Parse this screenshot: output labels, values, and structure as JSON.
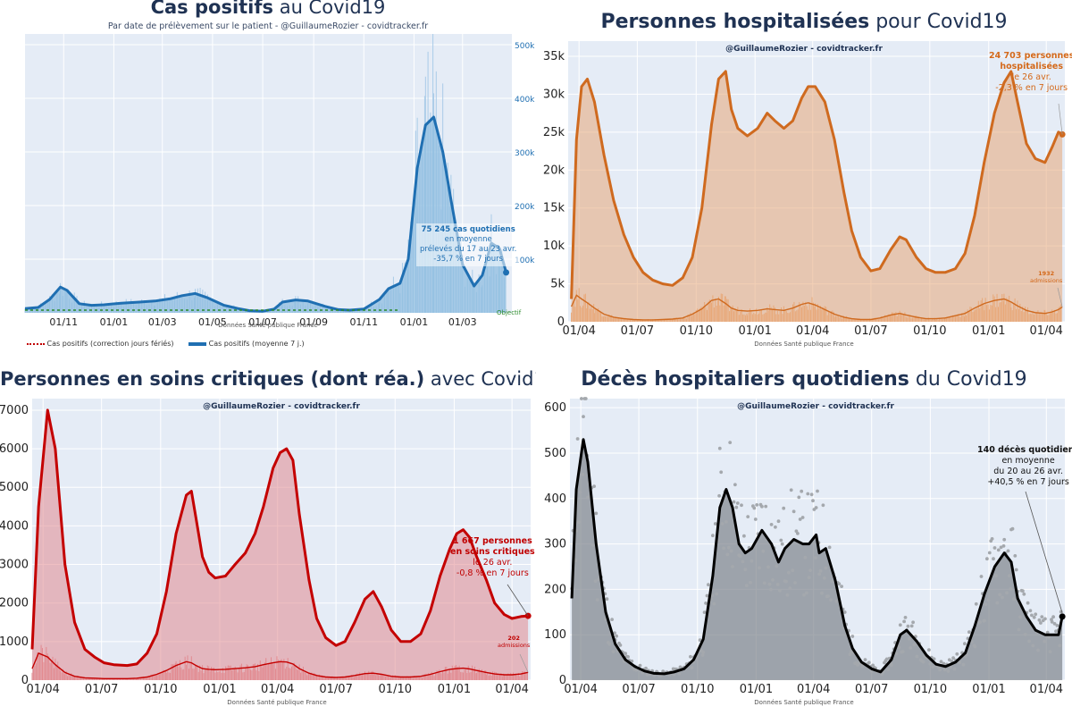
{
  "panels": [
    {
      "id": "cas",
      "title_bold": "Cas positifs",
      "title_rest": " au Covid19",
      "subtitle": "Par date de prélèvement sur le patient - @GuillaumeRozier - covidtracker.fr",
      "source": "Données Santé publique France",
      "legend": [
        {
          "label": "Cas positifs (correction jours fériés)",
          "color": "#c00000"
        },
        {
          "label": "Cas positifs (moyenne 7 j.)",
          "color": "#1f6fb2"
        }
      ],
      "annotation": {
        "bold": "75 245 cas quotidiens",
        "lines": [
          "en moyenne",
          "prélevés du 17 au 23 avr.",
          "-35,7 % en 7 jours"
        ]
      },
      "objective_label": "Objectif",
      "color": "#1f6fb2"
    },
    {
      "id": "hosp",
      "title_bold": "Personnes hospitalisées",
      "title_rest": " pour Covid19",
      "credit": "@GuillaumeRozier - covidtracker.fr",
      "source": "Données Santé publique France",
      "annotation": {
        "bold_lines": [
          "24 703 personnes",
          "hospitalisées"
        ],
        "lines": [
          "le 26 avr.",
          "-2,3 % en 7 jours"
        ]
      },
      "admissions": {
        "value": "1932",
        "label": "admissions"
      },
      "color": "#d4691a"
    },
    {
      "id": "rea",
      "title_bold": "Personnes en soins critiques (dont réa.)",
      "title_rest": " avec Covid19",
      "credit": "@GuillaumeRozier - covidtracker.fr",
      "source": "Données Santé publique France",
      "annotation": {
        "bold_lines": [
          "1 667 personnes",
          "en soins critiques"
        ],
        "lines": [
          "le 26 avr.",
          "-0,8 % en 7 jours"
        ]
      },
      "admissions": {
        "value": "202",
        "label": "admissions"
      },
      "color": "#c00000"
    },
    {
      "id": "deces",
      "title_bold": "Décès hospitaliers quotidiens",
      "title_rest": " du Covid19",
      "credit": "@GuillaumeRozier - covidtracker.fr",
      "source": "Données Santé publique France",
      "annotation": {
        "bold_lines": [
          "140 décès quotidiens"
        ],
        "lines": [
          "en moyenne",
          "du 20 au 26 avr.",
          "+40,5 % en 7 jours"
        ]
      },
      "color": "#000000"
    }
  ],
  "chart_data": [
    {
      "type": "area",
      "title": "Cas positifs au Covid19",
      "subtitle": "Par date de prélèvement sur le patient - @GuillaumeRozier - covidtracker.fr",
      "x_ticks": [
        "01/11",
        "01/01",
        "01/03",
        "01/05",
        "01/07",
        "01/09",
        "01/11",
        "01/01",
        "01/03"
      ],
      "y_ticks": [
        "100k",
        "200k",
        "300k",
        "400k",
        "500k"
      ],
      "y_axis_side": "right",
      "ylim": [
        0,
        520000
      ],
      "x": [
        "2020-09-15",
        "2020-10-01",
        "2020-10-15",
        "2020-10-28",
        "2020-11-05",
        "2020-11-20",
        "2020-12-05",
        "2020-12-20",
        "2021-01-10",
        "2021-02-01",
        "2021-02-20",
        "2021-03-10",
        "2021-03-25",
        "2021-04-10",
        "2021-04-25",
        "2021-05-15",
        "2021-06-01",
        "2021-06-15",
        "2021-07-01",
        "2021-07-15",
        "2021-07-25",
        "2021-08-10",
        "2021-08-25",
        "2021-09-15",
        "2021-10-01",
        "2021-10-15",
        "2021-11-01",
        "2021-11-20",
        "2021-12-01",
        "2021-12-15",
        "2021-12-25",
        "2022-01-05",
        "2022-01-15",
        "2022-01-25",
        "2022-02-05",
        "2022-02-15",
        "2022-03-01",
        "2022-03-15",
        "2022-03-25",
        "2022-04-05",
        "2022-04-15",
        "2022-04-23"
      ],
      "series": [
        {
          "name": "Cas positifs (moyenne 7 j.)",
          "values": [
            8000,
            10000,
            25000,
            48000,
            42000,
            17000,
            14000,
            15000,
            18000,
            20000,
            22000,
            26000,
            32000,
            36000,
            28000,
            14000,
            8000,
            4000,
            3000,
            7000,
            20000,
            24000,
            22000,
            12000,
            6000,
            5000,
            7000,
            25000,
            45000,
            55000,
            100000,
            270000,
            350000,
            365000,
            300000,
            210000,
            90000,
            50000,
            70000,
            130000,
            120000,
            75245
          ]
        }
      ],
      "objective_label": "Objectif",
      "legend": [
        "Cas positifs (correction jours fériés)",
        "Cas positifs (moyenne 7 j.)"
      ],
      "legend_position": "bottom-left",
      "source": "Données Santé publique France"
    },
    {
      "type": "area",
      "title": "Personnes hospitalisées pour Covid19",
      "x_ticks": [
        "01/04",
        "01/07",
        "01/10",
        "01/01",
        "01/04",
        "01/07",
        "01/10",
        "01/01",
        "01/04"
      ],
      "y_ticks": [
        "0",
        "5k",
        "10k",
        "15k",
        "20k",
        "25k",
        "30k",
        "35k"
      ],
      "ylim": [
        0,
        37000
      ],
      "x": [
        "2020-03-20",
        "2020-03-28",
        "2020-04-05",
        "2020-04-14",
        "2020-04-25",
        "2020-05-10",
        "2020-05-25",
        "2020-06-10",
        "2020-06-25",
        "2020-07-10",
        "2020-07-25",
        "2020-08-10",
        "2020-08-25",
        "2020-09-10",
        "2020-09-25",
        "2020-10-10",
        "2020-10-25",
        "2020-11-05",
        "2020-11-16",
        "2020-11-25",
        "2020-12-05",
        "2020-12-20",
        "2021-01-05",
        "2021-01-20",
        "2021-02-01",
        "2021-02-15",
        "2021-03-01",
        "2021-03-15",
        "2021-03-25",
        "2021-04-05",
        "2021-04-20",
        "2021-05-05",
        "2021-05-20",
        "2021-06-01",
        "2021-06-15",
        "2021-07-01",
        "2021-07-15",
        "2021-08-01",
        "2021-08-15",
        "2021-08-25",
        "2021-09-10",
        "2021-09-25",
        "2021-10-10",
        "2021-10-25",
        "2021-11-10",
        "2021-11-25",
        "2021-12-10",
        "2021-12-25",
        "2022-01-10",
        "2022-01-25",
        "2022-02-05",
        "2022-02-15",
        "2022-03-01",
        "2022-03-15",
        "2022-03-30",
        "2022-04-10",
        "2022-04-20",
        "2022-04-26"
      ],
      "series": [
        {
          "name": "Personnes hospitalisées",
          "values": [
            3000,
            24000,
            31000,
            32000,
            29000,
            22000,
            16000,
            11500,
            8500,
            6500,
            5500,
            5000,
            4800,
            5800,
            8500,
            15000,
            26000,
            32000,
            33000,
            28000,
            25500,
            24500,
            25500,
            27500,
            26500,
            25500,
            26500,
            29500,
            31000,
            31000,
            29000,
            24000,
            17000,
            12000,
            8500,
            6700,
            7000,
            9500,
            11200,
            10800,
            8500,
            7000,
            6500,
            6500,
            7000,
            9000,
            14000,
            21000,
            27500,
            31500,
            33000,
            29000,
            23500,
            21500,
            21000,
            23000,
            25000,
            24703
          ]
        },
        {
          "name": "admissions",
          "values": [
            2000,
            3500,
            3000,
            2500,
            1800,
            1000,
            600,
            400,
            300,
            250,
            250,
            300,
            350,
            500,
            1000,
            1700,
            2800,
            3000,
            2400,
            1800,
            1500,
            1400,
            1500,
            1700,
            1600,
            1500,
            1800,
            2300,
            2500,
            2200,
            1600,
            1000,
            600,
            400,
            300,
            300,
            500,
            900,
            1100,
            900,
            600,
            400,
            400,
            500,
            800,
            1100,
            1800,
            2400,
            2800,
            3000,
            2600,
            2100,
            1500,
            1200,
            1100,
            1300,
            1600,
            1932
          ]
        }
      ],
      "admissions_label": "1932 admissions",
      "source": "Données Santé publique France"
    },
    {
      "type": "area",
      "title": "Personnes en soins critiques (dont réa.) avec Covid19",
      "x_ticks": [
        "01/04",
        "01/07",
        "01/10",
        "01/01",
        "01/04",
        "01/07",
        "01/10",
        "01/01",
        "01/04"
      ],
      "y_ticks": [
        "0",
        "1000",
        "2000",
        "3000",
        "4000",
        "5000",
        "6000",
        "7000"
      ],
      "ylim": [
        0,
        7300
      ],
      "x": [
        "2020-03-15",
        "2020-03-25",
        "2020-04-08",
        "2020-04-20",
        "2020-05-05",
        "2020-05-20",
        "2020-06-05",
        "2020-06-20",
        "2020-07-05",
        "2020-07-20",
        "2020-08-10",
        "2020-08-25",
        "2020-09-10",
        "2020-09-25",
        "2020-10-10",
        "2020-10-25",
        "2020-11-10",
        "2020-11-18",
        "2020-11-25",
        "2020-12-05",
        "2020-12-15",
        "2020-12-25",
        "2021-01-10",
        "2021-01-25",
        "2021-02-10",
        "2021-02-25",
        "2021-03-10",
        "2021-03-25",
        "2021-04-05",
        "2021-04-15",
        "2021-04-25",
        "2021-05-05",
        "2021-05-20",
        "2021-06-01",
        "2021-06-15",
        "2021-07-01",
        "2021-07-15",
        "2021-07-30",
        "2021-08-15",
        "2021-08-28",
        "2021-09-10",
        "2021-09-25",
        "2021-10-10",
        "2021-10-25",
        "2021-11-10",
        "2021-11-25",
        "2021-12-10",
        "2021-12-25",
        "2022-01-05",
        "2022-01-15",
        "2022-01-25",
        "2022-02-05",
        "2022-02-20",
        "2022-03-05",
        "2022-03-20",
        "2022-04-01",
        "2022-04-15",
        "2022-04-26"
      ],
      "series": [
        {
          "name": "Personnes en soins critiques",
          "values": [
            800,
            4500,
            7000,
            6000,
            3000,
            1500,
            800,
            600,
            450,
            400,
            380,
            420,
            700,
            1200,
            2300,
            3800,
            4800,
            4900,
            4200,
            3200,
            2800,
            2650,
            2700,
            3000,
            3300,
            3800,
            4500,
            5500,
            5900,
            6000,
            5700,
            4300,
            2600,
            1600,
            1100,
            900,
            1000,
            1500,
            2100,
            2300,
            1900,
            1300,
            1000,
            1000,
            1200,
            1800,
            2700,
            3400,
            3800,
            3900,
            3700,
            3200,
            2600,
            2000,
            1700,
            1600,
            1650,
            1667
          ]
        },
        {
          "name": "admissions",
          "values": [
            300,
            700,
            600,
            400,
            200,
            100,
            60,
            50,
            40,
            40,
            40,
            50,
            80,
            150,
            250,
            380,
            480,
            450,
            380,
            300,
            280,
            270,
            280,
            300,
            320,
            350,
            400,
            450,
            480,
            470,
            420,
            300,
            180,
            120,
            80,
            70,
            80,
            120,
            170,
            180,
            150,
            100,
            80,
            80,
            100,
            150,
            220,
            280,
            300,
            310,
            290,
            250,
            200,
            160,
            140,
            140,
            160,
            202
          ]
        }
      ],
      "admissions_label": "202 admissions",
      "source": "Données Santé publique France"
    },
    {
      "type": "scatter",
      "title": "Décès hospitaliers quotidiens du Covid19",
      "x_ticks": [
        "01/04",
        "01/07",
        "01/10",
        "01/01",
        "01/04",
        "01/07",
        "01/10",
        "01/01",
        "01/04"
      ],
      "y_ticks": [
        "0",
        "100",
        "200",
        "300",
        "400",
        "500",
        "600"
      ],
      "ylim": [
        0,
        620
      ],
      "x": [
        "2020-03-18",
        "2020-03-25",
        "2020-04-05",
        "2020-04-12",
        "2020-04-25",
        "2020-05-10",
        "2020-05-25",
        "2020-06-10",
        "2020-06-25",
        "2020-07-10",
        "2020-07-25",
        "2020-08-10",
        "2020-08-25",
        "2020-09-10",
        "2020-09-25",
        "2020-10-10",
        "2020-10-25",
        "2020-11-05",
        "2020-11-15",
        "2020-11-25",
        "2020-12-05",
        "2020-12-15",
        "2020-12-25",
        "2021-01-10",
        "2021-01-25",
        "2021-02-05",
        "2021-02-15",
        "2021-03-01",
        "2021-03-15",
        "2021-03-25",
        "2021-04-05",
        "2021-04-10",
        "2021-04-20",
        "2021-05-05",
        "2021-05-20",
        "2021-06-01",
        "2021-06-15",
        "2021-07-01",
        "2021-07-15",
        "2021-08-01",
        "2021-08-15",
        "2021-08-25",
        "2021-09-10",
        "2021-09-25",
        "2021-10-10",
        "2021-10-25",
        "2021-11-10",
        "2021-11-25",
        "2021-12-10",
        "2021-12-25",
        "2022-01-10",
        "2022-01-25",
        "2022-02-05",
        "2022-02-15",
        "2022-03-01",
        "2022-03-15",
        "2022-03-30",
        "2022-04-10",
        "2022-04-20",
        "2022-04-26"
      ],
      "series": [
        {
          "name": "Décès quotidiens (moyenne 7 j.)",
          "values": [
            180,
            420,
            530,
            480,
            300,
            150,
            80,
            45,
            30,
            20,
            15,
            14,
            18,
            25,
            45,
            90,
            230,
            380,
            420,
            380,
            300,
            280,
            290,
            330,
            300,
            260,
            290,
            310,
            300,
            300,
            320,
            280,
            290,
            220,
            120,
            70,
            40,
            25,
            18,
            45,
            100,
            110,
            85,
            55,
            35,
            30,
            40,
            60,
            120,
            190,
            250,
            280,
            260,
            180,
            140,
            110,
            100,
            100,
            100,
            140
          ]
        }
      ],
      "source": "Données Santé publique France"
    }
  ]
}
